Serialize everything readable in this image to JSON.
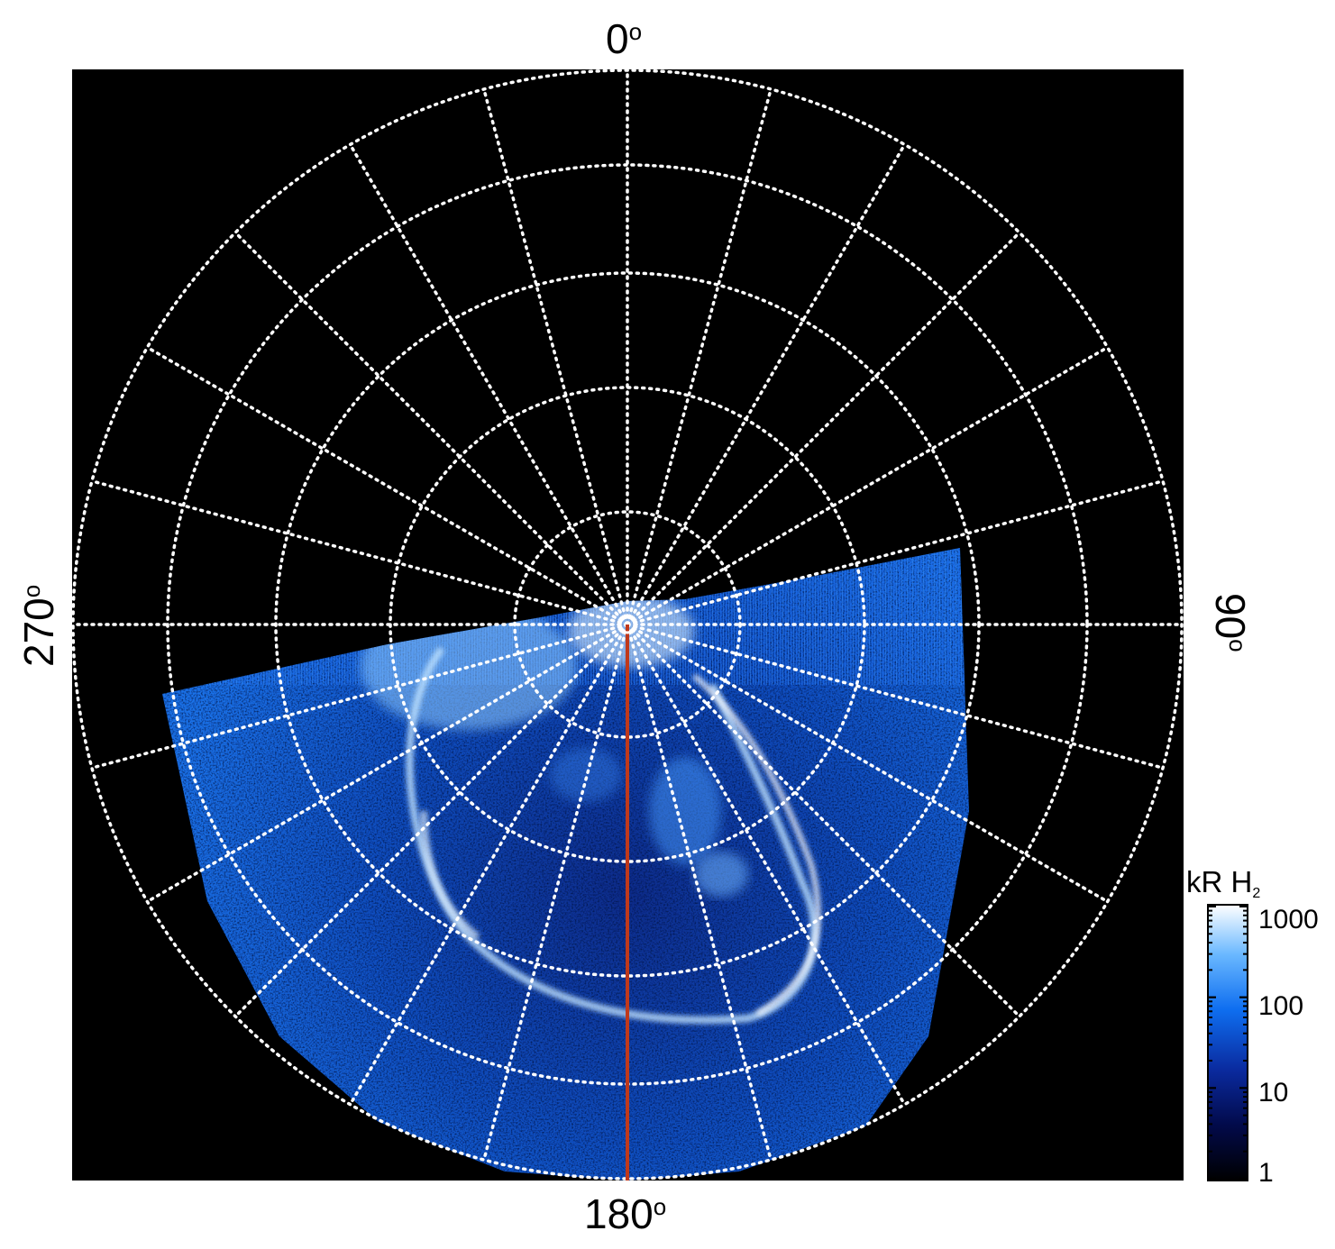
{
  "plot": {
    "background_color": "#000000",
    "grid_color": "#ffffff",
    "meridian_line_color": "#c0391b",
    "aurora_colors": [
      "#0a1a6e",
      "#0e5fd8",
      "#49a8ff",
      "#e8f4ff"
    ]
  },
  "labels": {
    "top": "0",
    "right": "90",
    "bottom": "180",
    "left": "270",
    "degree_symbol": "o"
  },
  "colorbar": {
    "title": "kR H",
    "title_subscript": "2",
    "ticks": [
      "1000",
      "100",
      "10",
      "1"
    ],
    "scale": "log"
  }
}
